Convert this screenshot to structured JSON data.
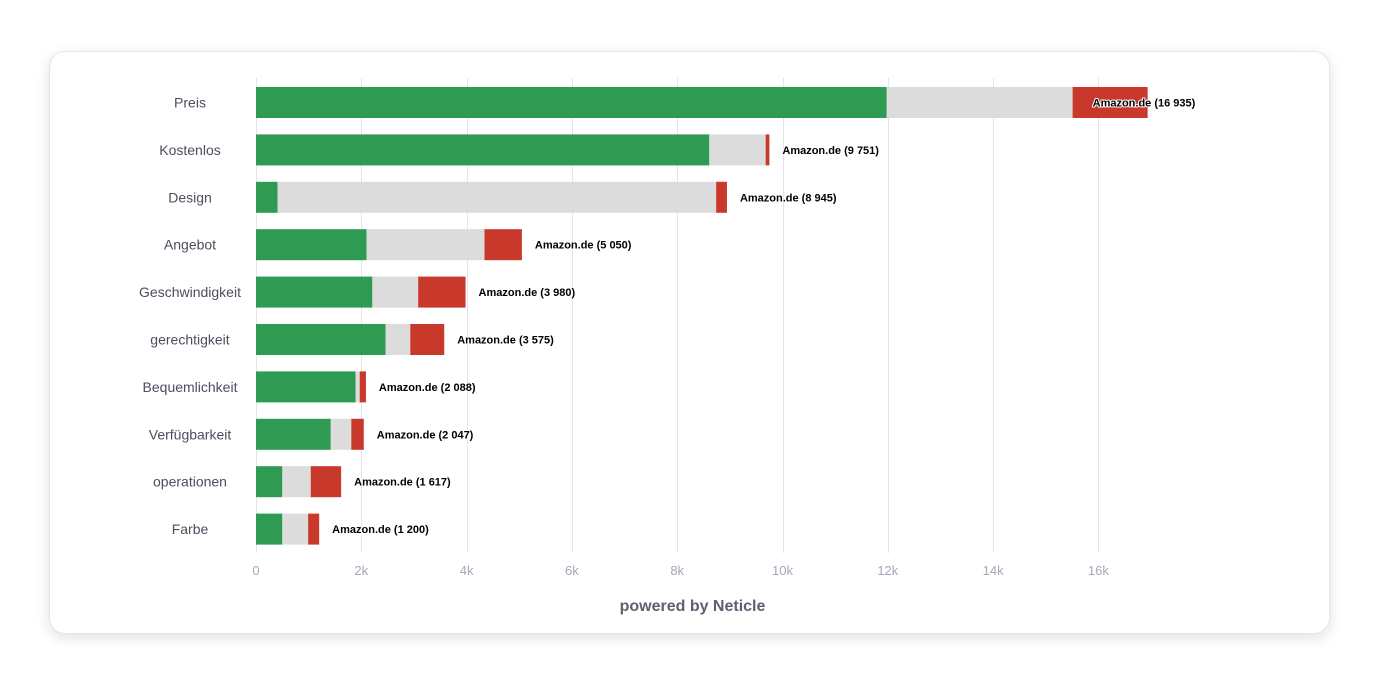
{
  "chart_data": {
    "type": "bar",
    "orientation": "horizontal",
    "stacked": true,
    "title": "",
    "xlabel": "",
    "ylabel": "",
    "xlim": [
      0,
      17000
    ],
    "x_ticks": [
      0,
      2000,
      4000,
      6000,
      8000,
      10000,
      12000,
      14000,
      16000
    ],
    "x_tick_labels": [
      "0",
      "2k",
      "4k",
      "6k",
      "8k",
      "10k",
      "12k",
      "14k",
      "16k"
    ],
    "grid": true,
    "legend": "none",
    "categories": [
      "Preis",
      "Kostenlos",
      "Design",
      "Angebot",
      "Geschwindigkeit",
      "gerechtigkeit",
      "Bequemlichkeit",
      "Verfügbarkeit",
      "operationen",
      "Farbe"
    ],
    "series": [
      {
        "color": "#2e9a52",
        "values": [
          11980,
          8610,
          410,
          2100,
          2210,
          2460,
          1890,
          1420,
          500,
          500
        ]
      },
      {
        "color": "#dcdcdc",
        "values": [
          3530,
          1070,
          8330,
          2240,
          870,
          470,
          80,
          390,
          540,
          490
        ]
      },
      {
        "color": "#c8392b",
        "values": [
          1425,
          71,
          205,
          710,
          900,
          645,
          118,
          237,
          577,
          210
        ]
      }
    ],
    "totals": [
      16935,
      9751,
      8945,
      5050,
      3980,
      3575,
      2088,
      2047,
      1617,
      1200
    ],
    "data_labels": [
      "Amazon.de (16 935)",
      "Amazon.de (9 751)",
      "Amazon.de (8 945)",
      "Amazon.de (5 050)",
      "Amazon.de (3 980)",
      "Amazon.de (3 575)",
      "Amazon.de (2 088)",
      "Amazon.de (2 047)",
      "Amazon.de (1 617)",
      "Amazon.de (1 200)"
    ]
  },
  "footer": {
    "text": "powered by Neticle"
  }
}
